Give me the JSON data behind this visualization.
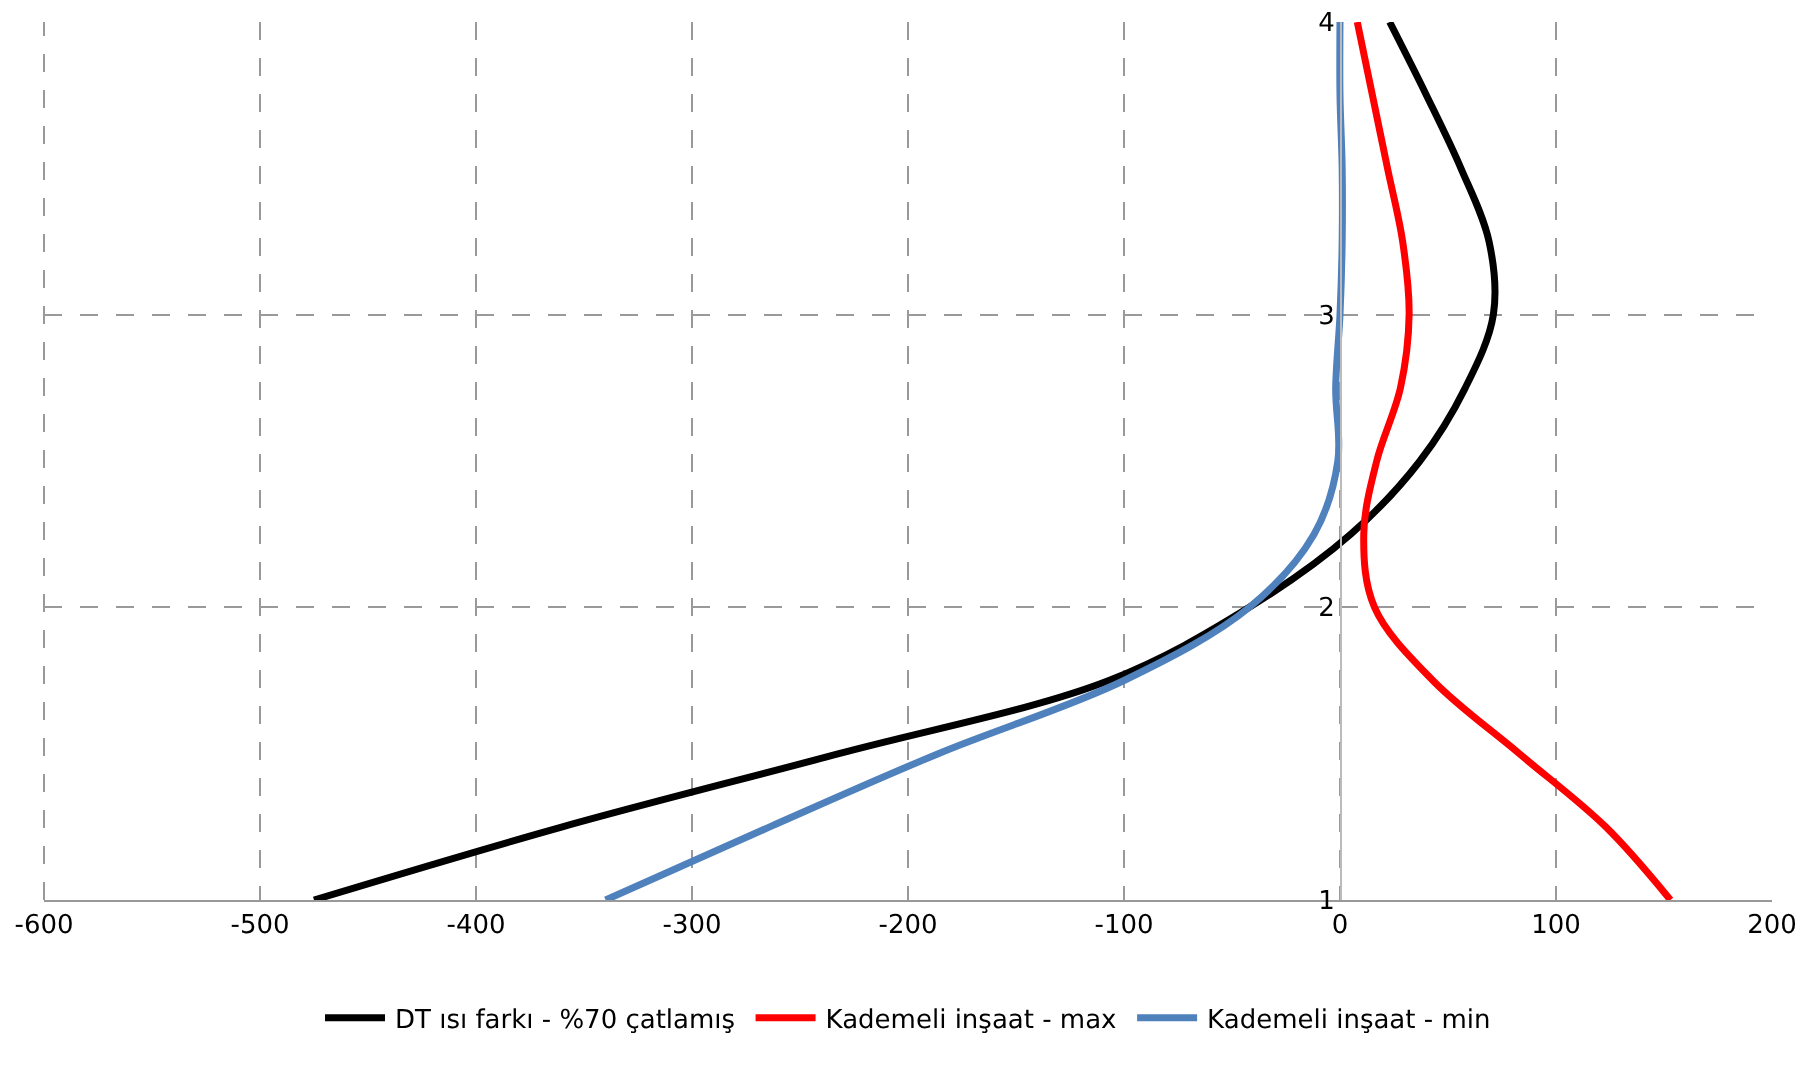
{
  "chart_data": {
    "type": "line",
    "series": [
      {
        "name": "DT ısı farkı - %70 çatlamış",
        "color": "#000000",
        "x": [
          -475,
          -360,
          -232,
          -107,
          -42,
          5,
          37,
          58,
          71,
          69,
          56,
          40,
          23
        ],
        "values": [
          1,
          1.25,
          1.5,
          1.75,
          2,
          2.25,
          2.5,
          2.75,
          3,
          3.25,
          3.5,
          3.75,
          4
        ]
      },
      {
        "name": "Kademeli inşaat - max",
        "color": "#ff0000",
        "x": [
          153,
          123,
          83,
          43,
          16,
          11,
          17,
          28,
          32,
          29,
          22,
          15,
          8
        ],
        "values": [
          1,
          1.25,
          1.5,
          1.75,
          2,
          2.25,
          2.5,
          2.75,
          3,
          3.25,
          3.5,
          3.75,
          4
        ]
      },
      {
        "name": "Kademeli inşaat - min",
        "color": "#4f81bd",
        "x": [
          -340,
          -264,
          -186,
          -100,
          -42,
          -12,
          -1,
          -2,
          0,
          1,
          1,
          0,
          0
        ],
        "values": [
          1,
          1.25,
          1.5,
          1.75,
          2,
          2.25,
          2.5,
          2.75,
          3,
          3.25,
          3.5,
          3.75,
          4
        ]
      }
    ],
    "xlim": [
      -600,
      200
    ],
    "xticks": [
      -600,
      -500,
      -400,
      -300,
      -200,
      -100,
      0,
      100,
      200
    ],
    "ylim": [
      1,
      4
    ],
    "yticks": [
      1,
      2,
      3,
      4
    ],
    "grid": true,
    "legend": "bottom",
    "marker": "none",
    "line_style": "solid"
  }
}
